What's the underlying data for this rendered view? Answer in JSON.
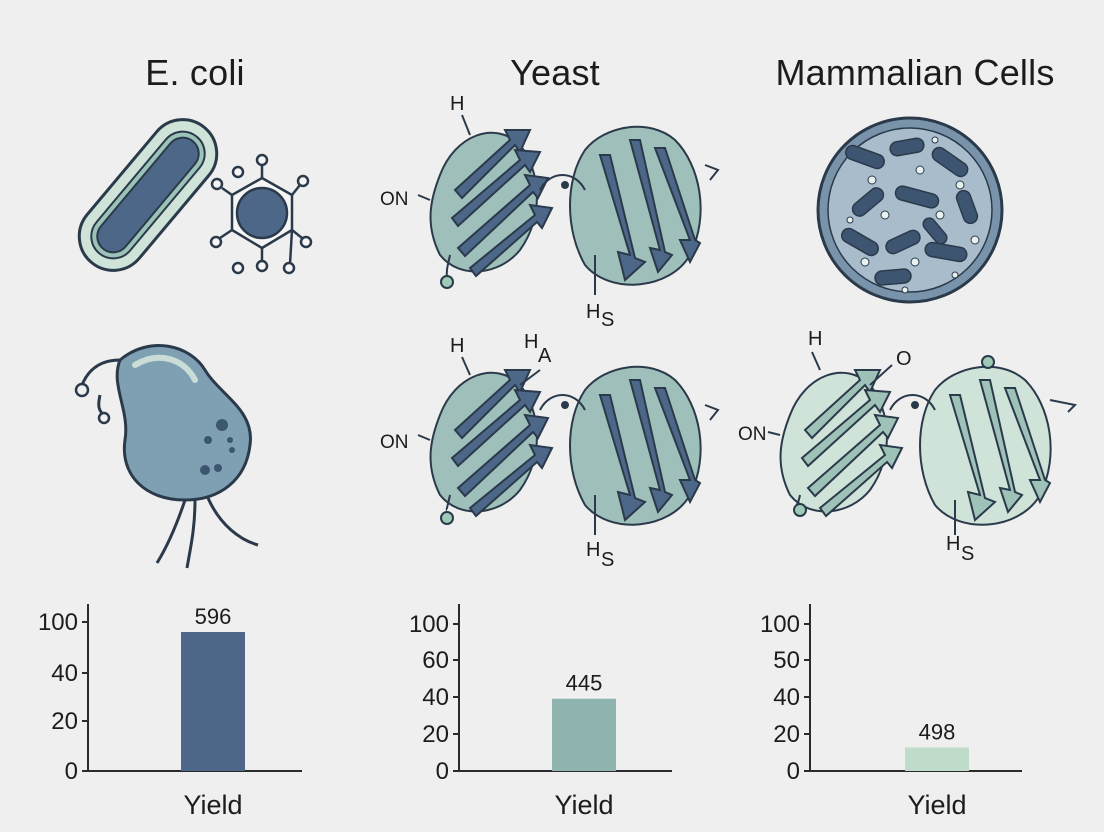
{
  "columns": [
    {
      "title": "E. coli"
    },
    {
      "title": "Yeast"
    },
    {
      "title": "Mammalian Cells"
    }
  ],
  "protein_labels": {
    "yeast_top": {
      "h": "H",
      "on": "ON",
      "hs_main": "H",
      "hs_sub": "S"
    },
    "yeast_bottom": {
      "h": "H",
      "ha_main": "H",
      "ha_sub": "A",
      "on": "ON",
      "hs_main": "H",
      "hs_sub": "S"
    },
    "mammal_bottom": {
      "h": "H",
      "o": "O",
      "on": "ON",
      "hs_main": "H",
      "hs_sub": "S"
    }
  },
  "colors": {
    "dark_blue": "#4d6789",
    "teal": "#8fb3ae",
    "light_green": "#bfdcca",
    "background": "#efefef"
  },
  "chart_data": [
    {
      "type": "bar",
      "categories": [
        "Yield"
      ],
      "values": [
        100
      ],
      "value_label": "596",
      "yticks": [
        "100",
        "40",
        "20",
        "0"
      ],
      "xlabel": "Yield",
      "color": "#4d6789"
    },
    {
      "type": "bar",
      "categories": [
        "Yield"
      ],
      "values": [
        52
      ],
      "value_label": "445",
      "yticks": [
        "100",
        "60",
        "40",
        "20",
        "0"
      ],
      "xlabel": "Yield",
      "color": "#8fb3ae"
    },
    {
      "type": "bar",
      "categories": [
        "Yield"
      ],
      "values": [
        16
      ],
      "value_label": "498",
      "yticks": [
        "100",
        "50",
        "40",
        "20",
        "0"
      ],
      "xlabel": "Yield",
      "color": "#bfdcca"
    }
  ]
}
